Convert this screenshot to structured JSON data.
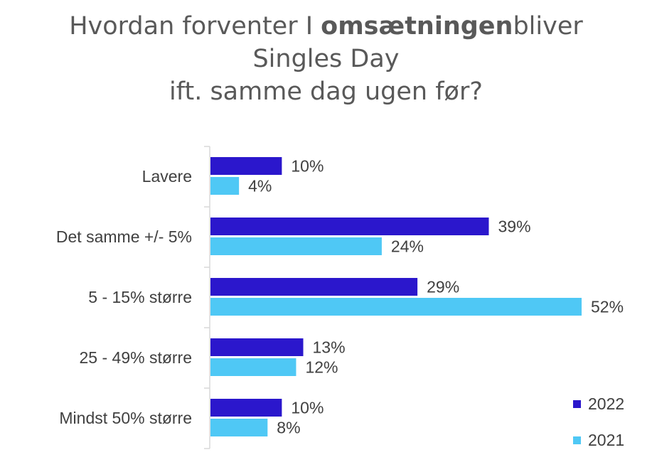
{
  "title": {
    "line1_pre": "Hvordan forventer I ",
    "line1_bold": "omsætningen",
    "line1_post": "bliver",
    "line2": "Singles Day",
    "line3": "ift. samme dag ugen før?"
  },
  "colors": {
    "s2022": "#2b17cc",
    "s2021": "#4fc8f5",
    "axis": "#d9d9d9"
  },
  "chart_data": {
    "type": "bar",
    "orientation": "horizontal",
    "categories": [
      "Lavere",
      "Det samme +/- 5%",
      "5 - 15% større",
      "25 - 49% større",
      "Mindst 50% større"
    ],
    "series": [
      {
        "name": "2022",
        "values": [
          10,
          39,
          29,
          13,
          10
        ],
        "labels": [
          "10%",
          "39%",
          "29%",
          "13%",
          "10%"
        ]
      },
      {
        "name": "2021",
        "values": [
          4,
          24,
          52,
          12,
          8
        ],
        "labels": [
          "4%",
          "24%",
          "52%",
          "12%",
          "8%"
        ]
      }
    ],
    "unit": "%",
    "legend": "bottom-right",
    "grid": false
  }
}
